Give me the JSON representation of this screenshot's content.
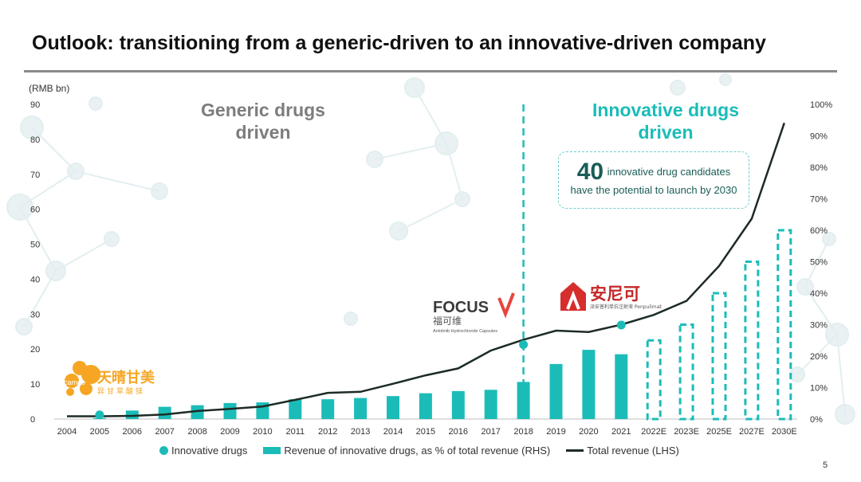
{
  "slide": {
    "title": "Outlook: transitioning from a generic-driven to an innovative-driven company",
    "page_number": "5",
    "era_generic": [
      "Generic drugs",
      "driven"
    ],
    "era_innovative": [
      "Innovative drugs",
      "driven"
    ],
    "callout": {
      "number": "40",
      "text_line1": "innovative drug candidates",
      "text_line2": "have the potential to launch by 2030"
    },
    "logos": {
      "cameo": {
        "en": "cameo",
        "cn": "天晴甘美",
        "sub": "异甘草酸镁"
      },
      "focus": {
        "en": "FOCUS",
        "cn": "福可维",
        "sub": "Anlotinib Hydrochloride Capsules"
      },
      "anike": {
        "cn": "安尼可",
        "sub": "派安普利单抗注射液 Penpulimab"
      }
    },
    "colors": {
      "accent": "#1bbcb8",
      "line": "#1d2b25",
      "generic_text": "#7d7d7d",
      "rule": "#8a8a8a"
    }
  },
  "chart_data": {
    "type": "bar",
    "left_axis_unit": "(RMB bn)",
    "categories": [
      "2004",
      "2005",
      "2006",
      "2007",
      "2008",
      "2009",
      "2010",
      "2011",
      "2012",
      "2013",
      "2014",
      "2015",
      "2016",
      "2017",
      "2018",
      "2019",
      "2020",
      "2021",
      "2022E",
      "2023E",
      "2025E",
      "2027E",
      "2030E"
    ],
    "left_ylim": [
      0,
      90
    ],
    "left_ticks": [
      "0",
      "10",
      "20",
      "30",
      "40",
      "50",
      "60",
      "70",
      "80",
      "90"
    ],
    "right_ylim": [
      0,
      100
    ],
    "right_ticks": [
      "0%",
      "10%",
      "20%",
      "30%",
      "40%",
      "50%",
      "60%",
      "70%",
      "80%",
      "90%",
      "100%"
    ],
    "series": [
      {
        "name": "Revenue of innovative drugs, as % of total revenue (RHS)",
        "axis": "right",
        "style": "bar",
        "values": [
          null,
          0.3,
          2.7,
          3.9,
          4.4,
          5.1,
          5.3,
          6.3,
          6.3,
          6.7,
          7.3,
          8.2,
          8.9,
          9.3,
          11.8,
          17.5,
          22.0,
          20.6,
          25.0,
          30.0,
          40.0,
          50.0,
          60.0
        ],
        "projected_from": "2022E"
      },
      {
        "name": "Total revenue (LHS)",
        "axis": "left",
        "style": "line",
        "values": [
          0.8,
          0.8,
          0.9,
          1.3,
          2.3,
          2.9,
          3.6,
          5.5,
          7.5,
          7.8,
          10.1,
          12.5,
          14.5,
          19.6,
          22.7,
          25.3,
          24.9,
          27.0,
          29.8,
          33.8,
          43.8,
          57.3,
          84.7
        ]
      },
      {
        "name": "Innovative drugs",
        "axis": "left",
        "style": "marker",
        "points": [
          {
            "x": "2005",
            "y": 1.2
          },
          {
            "x": "2018",
            "y": 21.3
          },
          {
            "x": "2021",
            "y": 26.9
          }
        ]
      }
    ],
    "divider_at": "2018",
    "legend": [
      "Innovative drugs",
      "Revenue of innovative drugs, as % of total revenue (RHS)",
      "Total revenue (LHS)"
    ],
    "legend_position": "bottom"
  }
}
